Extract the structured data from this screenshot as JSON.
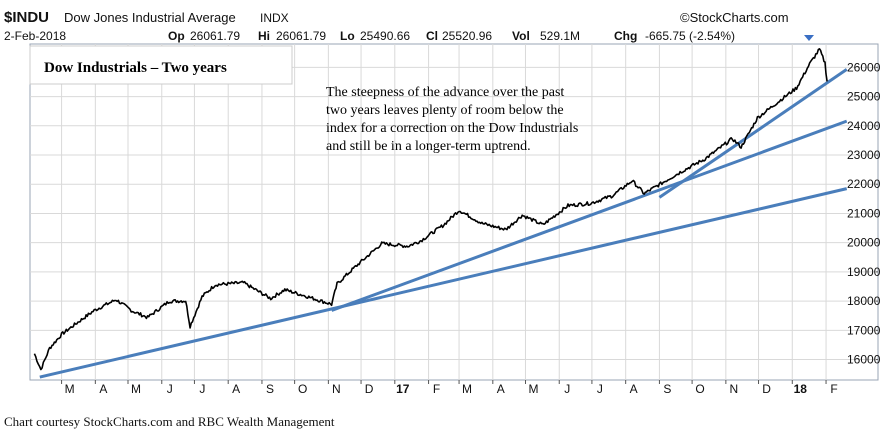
{
  "header": {
    "symbol": "$INDU",
    "name": "Dow Jones Industrial Average",
    "exchange": "INDX",
    "watermark": "©StockCharts.com",
    "date": "2-Feb-2018",
    "op_label": "Op",
    "op_value": "26061.79",
    "hi_label": "Hi",
    "hi_value": "26061.79",
    "lo_label": "Lo",
    "lo_value": "25490.66",
    "cl_label": "Cl",
    "cl_value": "25520.96",
    "vol_label": "Vol",
    "vol_value": "529.1M",
    "chg_label": "Chg",
    "chg_value": "-665.75 (-2.54%)"
  },
  "chart_title": "Dow Industrials – Two years",
  "annotation": [
    "The steepness of the advance over the past",
    "two years leaves plenty of room below the",
    "index for a correction on the Dow Industrials",
    "and still be in a longer-term uptrend."
  ],
  "credit": "Chart courtesy StockCharts.com and RBC Wealth Management",
  "colors": {
    "price": "#000000",
    "trendline": "#4a7ebb",
    "grid": "#d9d9d9",
    "background": "#ffffff",
    "down_arrow": "#3a6fc4"
  },
  "chart_data": {
    "type": "line",
    "title": "Dow Industrials – Two years",
    "xlabel": "",
    "ylabel": "",
    "ylim": [
      15300,
      26800
    ],
    "y_ticks": [
      16000,
      17000,
      18000,
      19000,
      20000,
      21000,
      22000,
      23000,
      24000,
      25000,
      26000
    ],
    "x_ticks": [
      "M",
      "A",
      "M",
      "J",
      "J",
      "A",
      "S",
      "O",
      "N",
      "D",
      "17",
      "F",
      "M",
      "A",
      "M",
      "J",
      "J",
      "A",
      "S",
      "O",
      "N",
      "D",
      "18",
      "F"
    ],
    "x_tick_bold": [
      "17",
      "18"
    ],
    "grid": true,
    "series": [
      {
        "values": [
          {
            "x": "2016-02-05",
            "y": 16200
          },
          {
            "x": "2016-02-11",
            "y": 15660
          },
          {
            "x": "2016-02-19",
            "y": 16390
          },
          {
            "x": "2016-03-01",
            "y": 16860
          },
          {
            "x": "2016-03-15",
            "y": 17250
          },
          {
            "x": "2016-03-31",
            "y": 17680
          },
          {
            "x": "2016-04-20",
            "y": 18050
          },
          {
            "x": "2016-05-05",
            "y": 17660
          },
          {
            "x": "2016-05-19",
            "y": 17440
          },
          {
            "x": "2016-06-08",
            "y": 18000
          },
          {
            "x": "2016-06-23",
            "y": 18010
          },
          {
            "x": "2016-06-27",
            "y": 17140
          },
          {
            "x": "2016-07-08",
            "y": 18150
          },
          {
            "x": "2016-07-20",
            "y": 18560
          },
          {
            "x": "2016-08-15",
            "y": 18630
          },
          {
            "x": "2016-09-09",
            "y": 18090
          },
          {
            "x": "2016-09-22",
            "y": 18390
          },
          {
            "x": "2016-10-14",
            "y": 18140
          },
          {
            "x": "2016-11-04",
            "y": 17890
          },
          {
            "x": "2016-11-09",
            "y": 18590
          },
          {
            "x": "2016-11-25",
            "y": 19150
          },
          {
            "x": "2016-12-20",
            "y": 19970
          },
          {
            "x": "2017-01-13",
            "y": 19880
          },
          {
            "x": "2017-01-25",
            "y": 20070
          },
          {
            "x": "2017-02-15",
            "y": 20610
          },
          {
            "x": "2017-03-01",
            "y": 21110
          },
          {
            "x": "2017-03-22",
            "y": 20660
          },
          {
            "x": "2017-04-13",
            "y": 20450
          },
          {
            "x": "2017-04-28",
            "y": 20940
          },
          {
            "x": "2017-05-17",
            "y": 20610
          },
          {
            "x": "2017-06-09",
            "y": 21270
          },
          {
            "x": "2017-06-30",
            "y": 21350
          },
          {
            "x": "2017-07-20",
            "y": 21610
          },
          {
            "x": "2017-08-07",
            "y": 22120
          },
          {
            "x": "2017-08-18",
            "y": 21680
          },
          {
            "x": "2017-09-01",
            "y": 21990
          },
          {
            "x": "2017-09-20",
            "y": 22410
          },
          {
            "x": "2017-10-13",
            "y": 22870
          },
          {
            "x": "2017-11-07",
            "y": 23560
          },
          {
            "x": "2017-11-15",
            "y": 23270
          },
          {
            "x": "2017-11-30",
            "y": 24270
          },
          {
            "x": "2017-12-18",
            "y": 24790
          },
          {
            "x": "2018-01-05",
            "y": 25300
          },
          {
            "x": "2018-01-17",
            "y": 26120
          },
          {
            "x": "2018-01-26",
            "y": 26620
          },
          {
            "x": "2018-01-31",
            "y": 26150
          },
          {
            "x": "2018-02-02",
            "y": 25520
          }
        ]
      }
    ],
    "trendlines": [
      {
        "from": {
          "x": "2016-02-10",
          "y": 15400
        },
        "to": {
          "x": "2018-02-20",
          "y": 21850
        }
      },
      {
        "from": {
          "x": "2016-11-04",
          "y": 17680
        },
        "to": {
          "x": "2018-02-20",
          "y": 24160
        }
      },
      {
        "from": {
          "x": "2017-09-01",
          "y": 21550
        },
        "to": {
          "x": "2018-02-20",
          "y": 25930
        }
      }
    ]
  }
}
